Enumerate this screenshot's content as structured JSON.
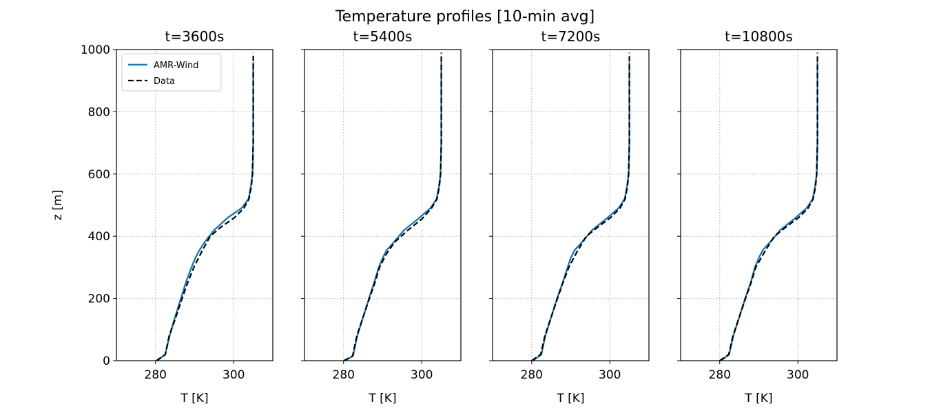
{
  "figure": {
    "suptitle": "Temperature profiles [10-min avg]"
  },
  "chart_data": [
    {
      "type": "line",
      "title": "t=3600s",
      "xlabel": "T [K]",
      "ylabel": "z [m]",
      "xlim": [
        270,
        310
      ],
      "ylim": [
        0,
        1000
      ],
      "xticks": [
        280,
        300
      ],
      "yticks": [
        0,
        200,
        400,
        600,
        800,
        1000
      ],
      "grid": true,
      "legend": {
        "placement": "upper-left",
        "entries": [
          "AMR-Wind",
          "Data"
        ]
      },
      "series": [
        {
          "name": "AMR-Wind",
          "color": "#1f77b4",
          "style": "solid",
          "x": [
            280.4,
            282.5,
            283.6,
            285.0,
            286.5,
            288.0,
            289.2,
            290.2,
            291.0,
            292.5,
            295.0,
            298.5,
            302.0,
            303.8,
            304.4,
            304.8,
            305.0,
            305.0
          ],
          "y": [
            0,
            20,
            80,
            140,
            200,
            260,
            300,
            330,
            350,
            380,
            420,
            460,
            490,
            520,
            560,
            600,
            700,
            960
          ]
        },
        {
          "name": "Data",
          "color": "#000000",
          "style": "dashed",
          "x": [
            280.2,
            282.5,
            283.5,
            285.2,
            286.8,
            288.2,
            289.8,
            291.8,
            294.0,
            296.8,
            300.2,
            302.6,
            303.9,
            304.5,
            304.8,
            305.0,
            305.0
          ],
          "y": [
            0,
            20,
            80,
            140,
            200,
            250,
            300,
            350,
            400,
            430,
            460,
            490,
            520,
            560,
            600,
            700,
            990
          ]
        }
      ]
    },
    {
      "type": "line",
      "title": "t=5400s",
      "xlabel": "T [K]",
      "xlim": [
        270,
        310
      ],
      "ylim": [
        0,
        1000
      ],
      "xticks": [
        280,
        300
      ],
      "yticks": [
        0,
        200,
        400,
        600,
        800,
        1000
      ],
      "grid": true,
      "series": [
        {
          "name": "AMR-Wind",
          "color": "#1f77b4",
          "style": "solid",
          "x": [
            280.3,
            282.4,
            283.5,
            285.0,
            286.5,
            287.8,
            289.0,
            290.0,
            291.0,
            292.8,
            295.5,
            299.0,
            302.2,
            303.8,
            304.4,
            304.8,
            305.0,
            305.0
          ],
          "y": [
            0,
            15,
            80,
            140,
            200,
            250,
            300,
            330,
            355,
            380,
            420,
            455,
            490,
            520,
            560,
            600,
            700,
            960
          ]
        },
        {
          "name": "Data",
          "color": "#000000",
          "style": "dashed",
          "x": [
            280.1,
            282.3,
            283.4,
            285.0,
            286.6,
            288.0,
            289.2,
            290.8,
            293.0,
            296.5,
            300.0,
            302.5,
            303.9,
            304.5,
            304.8,
            305.0,
            305.0
          ],
          "y": [
            0,
            15,
            80,
            140,
            200,
            250,
            300,
            340,
            380,
            420,
            455,
            490,
            520,
            560,
            600,
            700,
            990
          ]
        }
      ]
    },
    {
      "type": "line",
      "title": "t=7200s",
      "xlabel": "T [K]",
      "xlim": [
        270,
        310
      ],
      "ylim": [
        0,
        1000
      ],
      "xticks": [
        280,
        300
      ],
      "yticks": [
        0,
        200,
        400,
        600,
        800,
        1000
      ],
      "grid": true,
      "series": [
        {
          "name": "AMR-Wind",
          "color": "#1f77b4",
          "style": "solid",
          "x": [
            280.3,
            282.5,
            283.5,
            285.0,
            286.5,
            287.9,
            289.2,
            290.0,
            291.0,
            292.8,
            295.5,
            299.0,
            302.2,
            303.8,
            304.4,
            304.8,
            305.0,
            305.0
          ],
          "y": [
            0,
            20,
            80,
            140,
            200,
            250,
            300,
            330,
            355,
            380,
            420,
            455,
            490,
            520,
            560,
            600,
            700,
            960
          ]
        },
        {
          "name": "Data",
          "color": "#000000",
          "style": "dashed",
          "x": [
            280.0,
            282.3,
            283.4,
            285.0,
            286.6,
            288.0,
            289.5,
            291.6,
            294.0,
            297.0,
            300.2,
            302.6,
            303.9,
            304.5,
            304.8,
            305.0,
            305.0
          ],
          "y": [
            0,
            20,
            80,
            140,
            200,
            250,
            300,
            350,
            400,
            430,
            460,
            490,
            520,
            560,
            600,
            700,
            990
          ]
        }
      ]
    },
    {
      "type": "line",
      "title": "t=10800s",
      "xlabel": "T [K]",
      "xlim": [
        270,
        310
      ],
      "ylim": [
        0,
        1000
      ],
      "xticks": [
        280,
        300
      ],
      "yticks": [
        0,
        200,
        400,
        600,
        800,
        1000
      ],
      "grid": true,
      "series": [
        {
          "name": "AMR-Wind",
          "color": "#1f77b4",
          "style": "solid",
          "x": [
            280.3,
            282.4,
            283.5,
            285.0,
            286.5,
            287.9,
            289.0,
            290.0,
            291.0,
            292.8,
            295.5,
            299.0,
            302.2,
            303.8,
            304.4,
            304.8,
            305.0,
            305.0
          ],
          "y": [
            0,
            20,
            80,
            140,
            200,
            250,
            300,
            330,
            355,
            380,
            420,
            455,
            490,
            520,
            560,
            600,
            700,
            960
          ]
        },
        {
          "name": "Data",
          "color": "#000000",
          "style": "dashed",
          "x": [
            280.0,
            282.3,
            283.4,
            285.0,
            286.6,
            288.0,
            289.2,
            291.5,
            294.0,
            297.0,
            300.2,
            302.6,
            303.9,
            304.5,
            304.8,
            305.0,
            305.0
          ],
          "y": [
            0,
            20,
            80,
            140,
            200,
            250,
            300,
            350,
            400,
            430,
            460,
            490,
            520,
            560,
            600,
            700,
            990
          ]
        }
      ]
    }
  ]
}
